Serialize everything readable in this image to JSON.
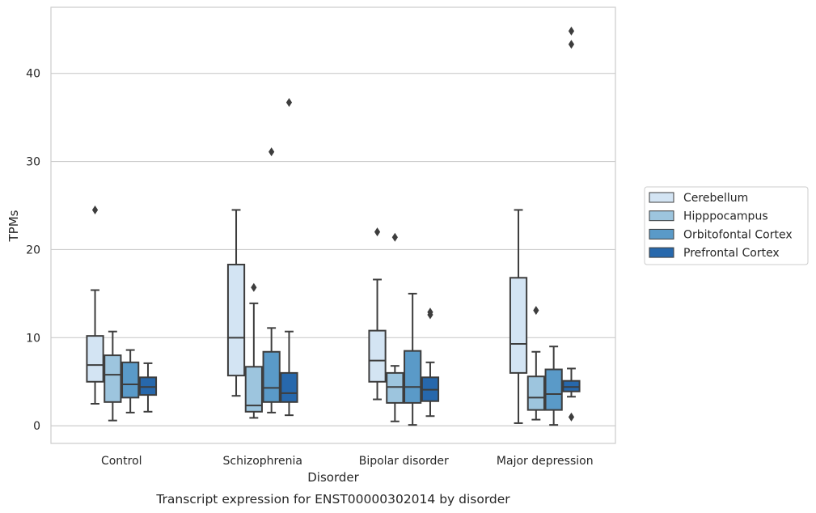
{
  "chart_data": {
    "type": "box",
    "caption": "Transcript expression for ENST00000302014 by disorder",
    "xlabel": "Disorder",
    "ylabel": "TPMs",
    "ylim": [
      -2,
      47.5
    ],
    "yticks": [
      0,
      10,
      20,
      30,
      40
    ],
    "grid": "horizontal",
    "legend_position": "right",
    "categories": [
      "Control",
      "Schizophrenia",
      "Bipolar disorder",
      "Major depression"
    ],
    "series": [
      {
        "name": "Cerebellum",
        "color": "#d3e4f3",
        "boxes": [
          {
            "whislo": 2.5,
            "q1": 5.0,
            "med": 6.9,
            "q3": 10.2,
            "whishi": 15.4,
            "fliers": [
              24.5
            ]
          },
          {
            "whislo": 3.4,
            "q1": 5.7,
            "med": 10.0,
            "q3": 18.3,
            "whishi": 24.5,
            "fliers": []
          },
          {
            "whislo": 3.0,
            "q1": 5.0,
            "med": 7.4,
            "q3": 10.8,
            "whishi": 16.6,
            "fliers": [
              22.0
            ]
          },
          {
            "whislo": 0.3,
            "q1": 6.0,
            "med": 9.3,
            "q3": 16.8,
            "whishi": 24.5,
            "fliers": []
          }
        ]
      },
      {
        "name": "Hipppocampus",
        "color": "#9dc5de",
        "boxes": [
          {
            "whislo": 0.6,
            "q1": 2.7,
            "med": 5.8,
            "q3": 8.0,
            "whishi": 10.7,
            "fliers": []
          },
          {
            "whislo": 0.9,
            "q1": 1.6,
            "med": 2.3,
            "q3": 6.7,
            "whishi": 13.9,
            "fliers": [
              15.7
            ]
          },
          {
            "whislo": 0.5,
            "q1": 2.6,
            "med": 4.4,
            "q3": 6.0,
            "whishi": 6.8,
            "fliers": [
              21.4
            ]
          },
          {
            "whislo": 0.7,
            "q1": 1.8,
            "med": 3.2,
            "q3": 5.6,
            "whishi": 8.4,
            "fliers": [
              13.1
            ]
          }
        ]
      },
      {
        "name": "Orbitofontal Cortex",
        "color": "#5a9ac8",
        "boxes": [
          {
            "whislo": 1.5,
            "q1": 3.2,
            "med": 4.7,
            "q3": 7.2,
            "whishi": 8.6,
            "fliers": []
          },
          {
            "whislo": 1.5,
            "q1": 2.7,
            "med": 4.3,
            "q3": 8.4,
            "whishi": 11.1,
            "fliers": [
              31.1
            ]
          },
          {
            "whislo": 0.1,
            "q1": 2.6,
            "med": 4.4,
            "q3": 8.5,
            "whishi": 15.0,
            "fliers": []
          },
          {
            "whislo": 0.1,
            "q1": 1.8,
            "med": 3.6,
            "q3": 6.4,
            "whishi": 9.0,
            "fliers": []
          }
        ]
      },
      {
        "name": "Prefrontal Cortex",
        "color": "#2768ac",
        "boxes": [
          {
            "whislo": 1.6,
            "q1": 3.5,
            "med": 4.4,
            "q3": 5.5,
            "whishi": 7.1,
            "fliers": []
          },
          {
            "whislo": 1.2,
            "q1": 2.7,
            "med": 3.7,
            "q3": 6.0,
            "whishi": 10.7,
            "fliers": [
              36.7
            ]
          },
          {
            "whislo": 1.1,
            "q1": 2.8,
            "med": 4.1,
            "q3": 5.5,
            "whishi": 7.2,
            "fliers": [
              12.6,
              12.9
            ]
          },
          {
            "whislo": 3.3,
            "q1": 3.9,
            "med": 4.4,
            "q3": 5.1,
            "whishi": 6.5,
            "fliers": [
              1.0,
              43.3,
              44.8
            ]
          }
        ]
      }
    ]
  }
}
